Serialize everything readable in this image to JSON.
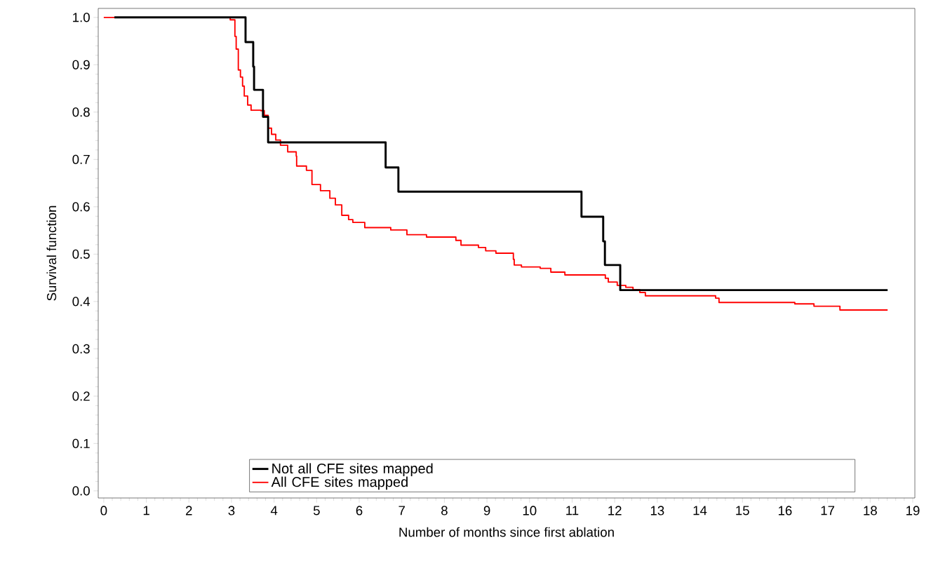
{
  "chart_data": {
    "type": "step",
    "xlabel": "Number of months since first ablation",
    "ylabel": "Survival function",
    "xlim": [
      -0.13,
      19.05
    ],
    "ylim": [
      -0.015,
      1.019
    ],
    "xticks": [
      0,
      1,
      2,
      3,
      4,
      5,
      6,
      7,
      8,
      9,
      10,
      11,
      12,
      13,
      14,
      15,
      16,
      17,
      18,
      19
    ],
    "yticks": [
      {
        "value": 0,
        "label": "0.0"
      },
      {
        "value": 0.1,
        "label": "0.1"
      },
      {
        "value": 0.2,
        "label": "0.2"
      },
      {
        "value": 0.3,
        "label": "0.3"
      },
      {
        "value": 0.4,
        "label": "0.4"
      },
      {
        "value": 0.5,
        "label": "0.5"
      },
      {
        "value": 0.6,
        "label": "0.6"
      },
      {
        "value": 0.7,
        "label": "0.7"
      },
      {
        "value": 0.8,
        "label": "0.8"
      },
      {
        "value": 0.9,
        "label": "0.9"
      },
      {
        "value": 1,
        "label": "1.0"
      }
    ],
    "grid": false,
    "legend": "bottom",
    "marker": "none",
    "series": [
      {
        "name": "Not all CFE sites mapped",
        "color": "#000000",
        "x": [
          0.25,
          3.33,
          3.51,
          3.53,
          3.74,
          3.86,
          6.62,
          6.92,
          11.22,
          11.73,
          11.77,
          12.13,
          18.41
        ],
        "values": [
          1.0,
          0.948,
          0.896,
          0.847,
          0.79,
          0.736,
          0.683,
          0.632,
          0.579,
          0.527,
          0.477,
          0.424,
          0.424
        ]
      },
      {
        "name": "All CFE sites mapped",
        "color": "#ff0000",
        "x": [
          0,
          2.97,
          3.08,
          3.11,
          3.16,
          3.21,
          3.26,
          3.3,
          3.38,
          3.46,
          3.69,
          3.77,
          3.86,
          3.94,
          4.04,
          4.15,
          4.32,
          4.52,
          4.53,
          4.76,
          4.89,
          5.09,
          5.31,
          5.44,
          5.59,
          5.75,
          5.85,
          6.13,
          6.74,
          7.12,
          7.58,
          8.27,
          8.39,
          8.8,
          8.97,
          9.21,
          9.62,
          9.64,
          9.81,
          10.25,
          10.5,
          10.83,
          11.78,
          11.85,
          12.06,
          12.26,
          12.43,
          12.59,
          12.72,
          14.37,
          14.45,
          16.23,
          16.68,
          17.29,
          18.41
        ],
        "values": [
          1.0,
          0.995,
          0.96,
          0.933,
          0.889,
          0.874,
          0.855,
          0.834,
          0.815,
          0.804,
          0.803,
          0.793,
          0.766,
          0.753,
          0.741,
          0.73,
          0.716,
          0.707,
          0.686,
          0.677,
          0.647,
          0.634,
          0.618,
          0.604,
          0.582,
          0.573,
          0.567,
          0.556,
          0.551,
          0.541,
          0.536,
          0.529,
          0.519,
          0.514,
          0.507,
          0.502,
          0.489,
          0.477,
          0.473,
          0.47,
          0.462,
          0.456,
          0.449,
          0.441,
          0.434,
          0.43,
          0.425,
          0.419,
          0.412,
          0.407,
          0.398,
          0.395,
          0.39,
          0.382,
          0.382
        ]
      }
    ]
  }
}
